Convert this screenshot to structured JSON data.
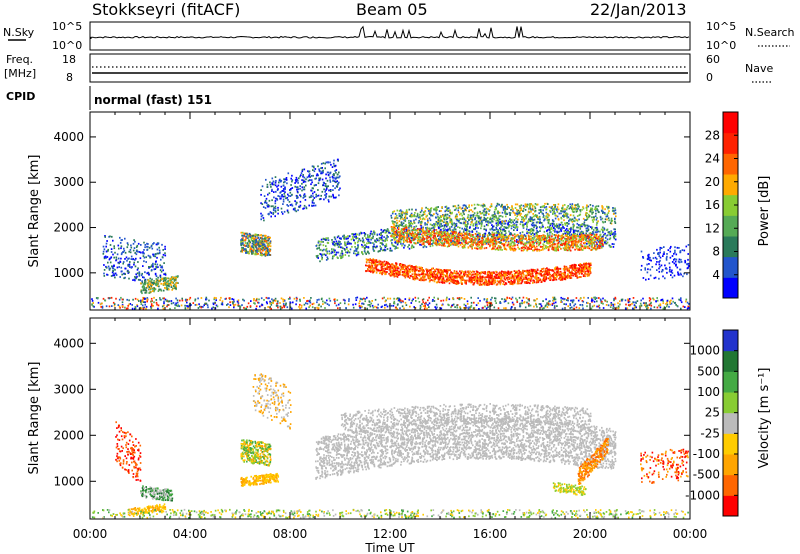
{
  "header": {
    "station": "Stokkseyri (fitACF)",
    "beam": "Beam 05",
    "date": "22/Jan/2013"
  },
  "noise_panel": {
    "left_label": "N.Sky",
    "left_ticks": [
      "10^5",
      "10^0"
    ],
    "right_ticks": [
      "10^5",
      "10^0"
    ],
    "right_label": "N.Search"
  },
  "freq_panel": {
    "label_line1": "Freq.",
    "label_line2": "[MHz]",
    "left_ticks": [
      "18",
      "8"
    ],
    "right_ticks": [
      "60",
      "0"
    ],
    "right_label": "Nave"
  },
  "cpid_panel": {
    "label": "CPID",
    "mode_text": "normal (fast) 151"
  },
  "colors": {
    "power_scale": [
      "#0000ff",
      "#2255cc",
      "#2a7a5a",
      "#55aa55",
      "#88cc33",
      "#ffaa00",
      "#ff6600",
      "#ff2200",
      "#ff0000"
    ],
    "velocity_scale": [
      "#2233cc",
      "#227733",
      "#44aa44",
      "#88cc33",
      "#bbbbbb",
      "#ffcc00",
      "#ffa500",
      "#ff6600",
      "#ff0000"
    ]
  },
  "chart_data": [
    {
      "type": "heatmap",
      "panel": "power",
      "ylabel": "Slant Range [km]",
      "xlabel": "Time UT",
      "xlim": [
        "00:00",
        "24:00"
      ],
      "ylim": [
        180,
        4550
      ],
      "x_ticks": [
        "00:00",
        "04:00",
        "08:00",
        "12:00",
        "16:00",
        "20:00",
        "00:00"
      ],
      "y_ticks": [
        "1000",
        "2000",
        "3000",
        "4000"
      ],
      "colorbar": {
        "label": "Power [dB]",
        "ticks": [
          "4",
          "8",
          "12",
          "16",
          "20",
          "24",
          "28"
        ],
        "range": [
          0,
          30
        ]
      }
    },
    {
      "type": "heatmap",
      "panel": "velocity",
      "ylabel": "Slant Range [km]",
      "xlabel": "Time UT",
      "xlim": [
        "00:00",
        "24:00"
      ],
      "ylim": [
        180,
        4550
      ],
      "x_ticks": [
        "00:00",
        "04:00",
        "08:00",
        "12:00",
        "16:00",
        "20:00",
        "00:00"
      ],
      "y_ticks": [
        "1000",
        "2000",
        "3000",
        "4000"
      ],
      "colorbar": {
        "label": "Velocity [m s⁻¹]",
        "ticks": [
          "1000",
          "500",
          "100",
          "25",
          "-25",
          "-100",
          "-500",
          "-1000"
        ]
      }
    }
  ]
}
